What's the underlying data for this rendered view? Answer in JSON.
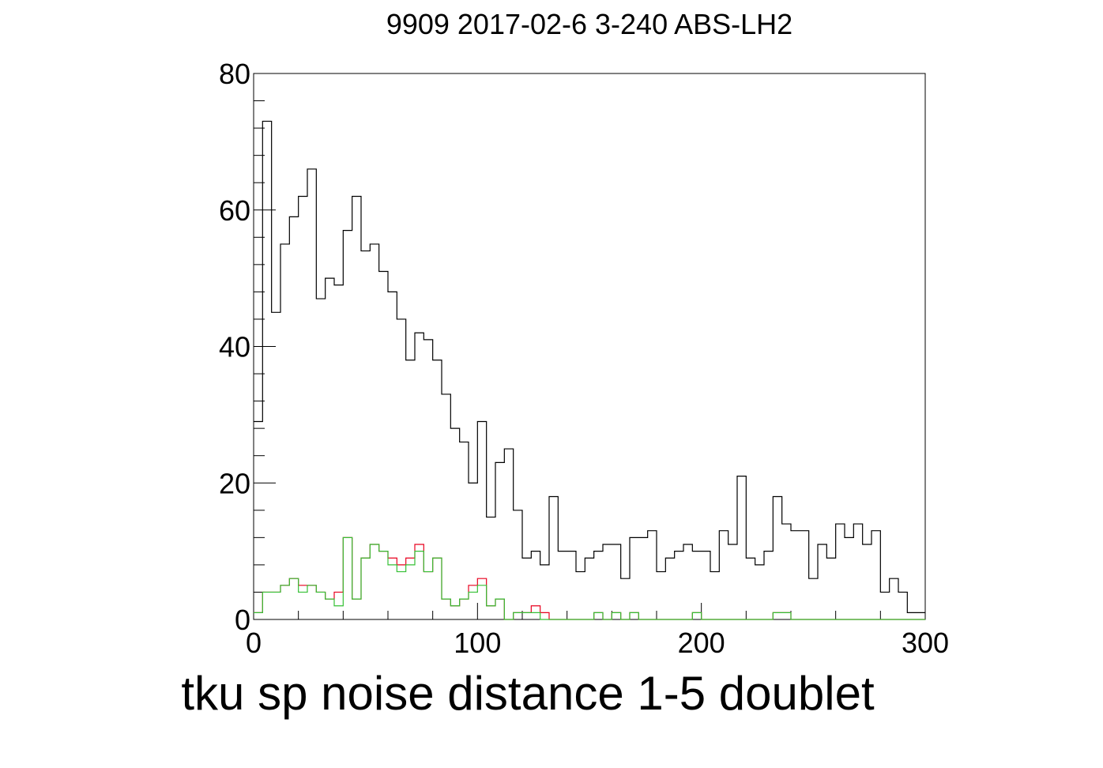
{
  "chart_data": {
    "type": "histogram",
    "title": "9909 2017-02-6 3-240 ABS-LH2",
    "xlabel": "tku sp noise distance 1-5 doublet",
    "ylabel": "",
    "xlim": [
      0,
      300
    ],
    "ylim": [
      0,
      80
    ],
    "bin_width": 4,
    "bin_start": 0,
    "x_ticks": [
      "0",
      "100",
      "200",
      "300"
    ],
    "y_ticks": [
      "0",
      "20",
      "40",
      "60",
      "80"
    ],
    "grid": false,
    "colors": {
      "black": "#000000",
      "red": "#e8001e",
      "green": "#35c035"
    },
    "series": [
      {
        "color": "#000000",
        "values": [
          29,
          73,
          45,
          55,
          59,
          62,
          66,
          47,
          50,
          49,
          57,
          62,
          54,
          55,
          51,
          48,
          44,
          38,
          42,
          41,
          38,
          33,
          28,
          26,
          20,
          29,
          15,
          23,
          25,
          16,
          9,
          10,
          8,
          18,
          10,
          10,
          7,
          9,
          10,
          11,
          11,
          6,
          12,
          12,
          13,
          7,
          9,
          10,
          11,
          10,
          10,
          7,
          13,
          11,
          21,
          9,
          8,
          10,
          18,
          14,
          13,
          13,
          6,
          11,
          9,
          14,
          12,
          14,
          11,
          13,
          4,
          6,
          4,
          1,
          1
        ]
      },
      {
        "color": "#e8001e",
        "values": [
          1,
          4,
          4,
          5,
          6,
          5,
          5,
          4,
          3,
          4,
          12,
          3,
          9,
          11,
          10,
          9,
          8,
          9,
          11,
          7,
          9,
          3,
          2,
          3,
          5,
          6,
          2,
          3,
          0,
          1,
          1,
          2,
          1,
          0,
          0,
          0,
          0,
          0,
          1,
          0,
          1,
          0,
          1,
          0,
          0,
          0,
          0,
          0,
          0,
          1,
          0,
          0,
          0,
          0,
          0,
          0,
          0,
          0,
          1,
          1,
          0,
          0,
          0,
          0,
          0,
          0,
          0,
          0,
          0,
          0,
          0,
          0,
          0,
          0,
          0
        ]
      },
      {
        "color": "#35c035",
        "values": [
          1,
          4,
          4,
          5,
          6,
          4,
          5,
          4,
          3,
          2,
          12,
          3,
          9,
          11,
          10,
          8,
          7,
          8,
          10,
          7,
          9,
          3,
          2,
          3,
          4,
          5,
          2,
          3,
          0,
          1,
          1,
          1,
          0,
          0,
          0,
          0,
          0,
          0,
          1,
          0,
          1,
          0,
          1,
          0,
          0,
          0,
          0,
          0,
          0,
          1,
          0,
          0,
          0,
          0,
          0,
          0,
          0,
          0,
          1,
          1,
          0,
          0,
          0,
          0,
          0,
          0,
          0,
          0,
          0,
          0,
          0,
          0,
          0,
          0,
          0
        ]
      }
    ]
  }
}
